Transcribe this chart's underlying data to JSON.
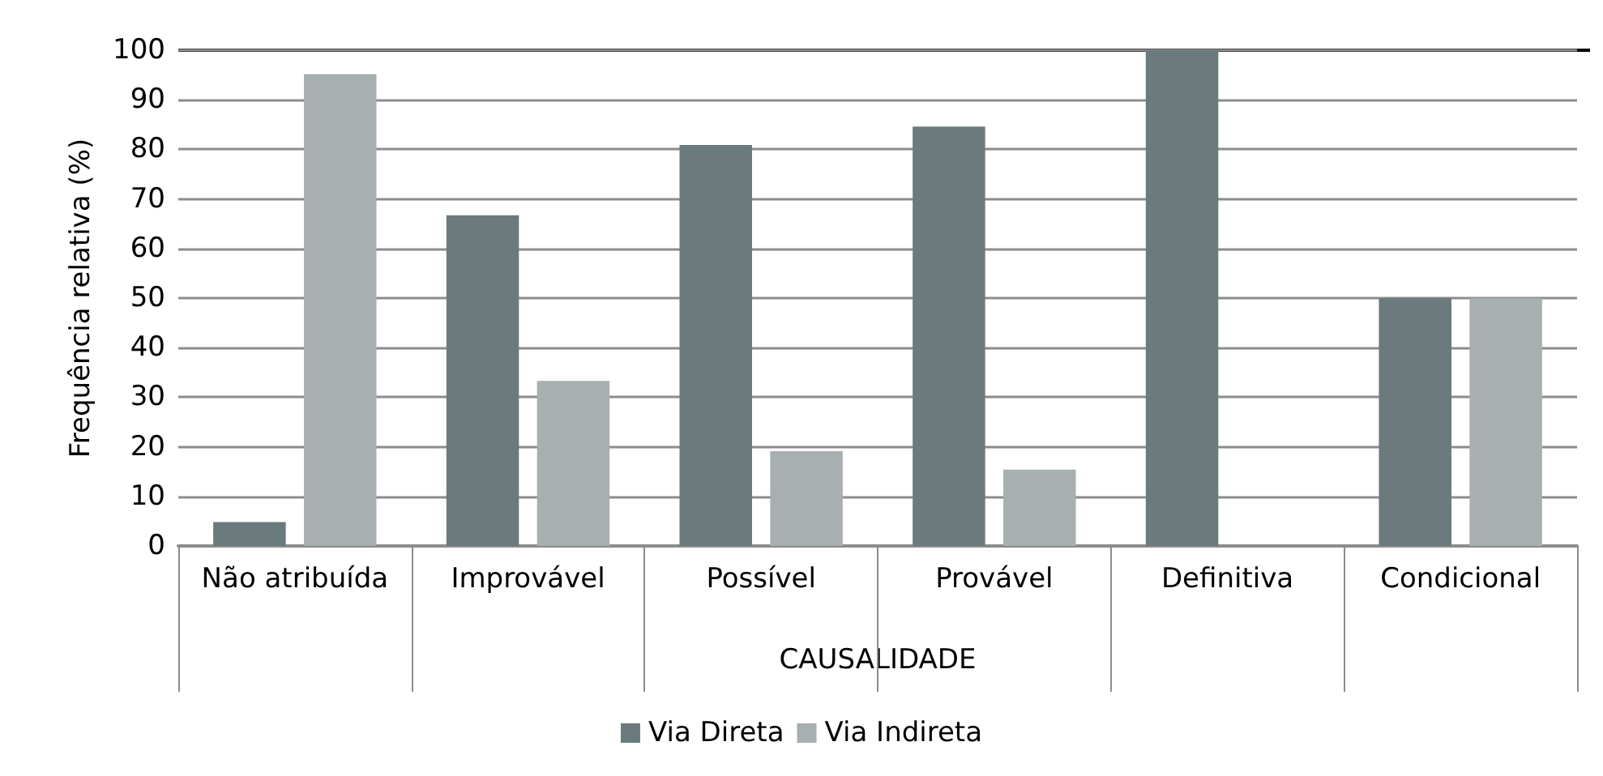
{
  "chart_data": {
    "type": "bar",
    "xlabel": "CAUSALIDADE",
    "ylabel": "Frequência relativa (%)",
    "categories": [
      "Não atribuída",
      "Improvável",
      "Possível",
      "Provável",
      "Definitiva",
      "Condicional"
    ],
    "series": [
      {
        "name": "Via Direta",
        "color": "#6b7a7d",
        "values": [
          4.8,
          66.7,
          80.9,
          84.6,
          100,
          50
        ]
      },
      {
        "name": "Via Indireta",
        "color": "#a8afb0",
        "values": [
          95.2,
          33.3,
          19.1,
          15.4,
          0,
          50
        ]
      }
    ],
    "ylim": [
      0,
      100
    ],
    "yticks": [
      0,
      10,
      20,
      30,
      40,
      50,
      60,
      70,
      80,
      90,
      100
    ],
    "grid": "y",
    "legend": "bottom"
  }
}
